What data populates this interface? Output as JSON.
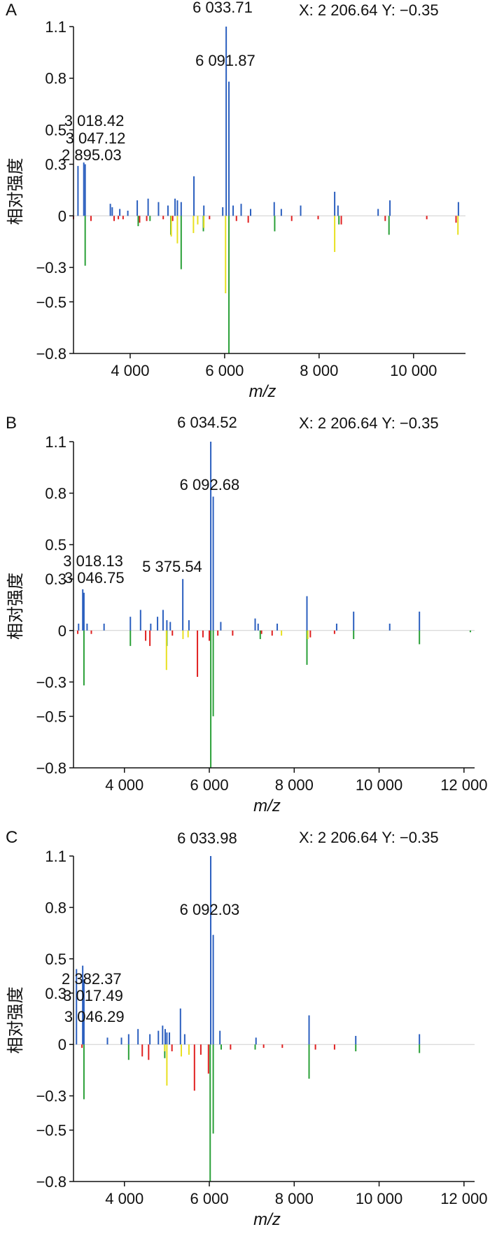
{
  "chart_data": [
    {
      "type": "bar",
      "panel": "A",
      "ylabel": "相对强度",
      "xlabel": "m/z",
      "coord_readout": "X: 2 206.64  Y: −0.35",
      "xlim": [
        2800,
        11100
      ],
      "ylim": [
        -0.8,
        1.1
      ],
      "xticks": [
        {
          "v": 4000,
          "t": "4 000"
        },
        {
          "v": 6000,
          "t": "6 000"
        },
        {
          "v": 8000,
          "t": "8 000"
        },
        {
          "v": 10000,
          "t": "10 000"
        }
      ],
      "yticks": [
        {
          "v": 1.1,
          "t": "1.1"
        },
        {
          "v": 0.8,
          "t": "0.8"
        },
        {
          "v": 0.5,
          "t": "0.5"
        },
        {
          "v": 0.3,
          "t": "0.3"
        },
        {
          "v": 0,
          "t": "0"
        },
        {
          "v": -0.3,
          "t": "−0.3"
        },
        {
          "v": -0.5,
          "t": "−0.5"
        },
        {
          "v": -0.8,
          "t": "−0.8"
        }
      ],
      "peak_labels": [
        {
          "text": "6 033.71",
          "x": 6033.71,
          "y": 1.1
        },
        {
          "text": "6 091.87",
          "x": 6091.87,
          "y": 0.78
        },
        {
          "text": "3 018.42",
          "x": 3018.42,
          "y": 0.42
        },
        {
          "text": "3 047.12",
          "x": 3047.12,
          "y": 0.38
        },
        {
          "text": "2 895.03",
          "x": 2895.03,
          "y": 0.3
        }
      ],
      "series": [
        {
          "color": "#2b5fbf",
          "sticks": [
            [
              2895,
              0.29
            ],
            [
              3018,
              0.31
            ],
            [
              3047,
              0.3
            ],
            [
              3580,
              0.07
            ],
            [
              3620,
              0.05
            ],
            [
              3780,
              0.04
            ],
            [
              3950,
              0.03
            ],
            [
              4150,
              0.09
            ],
            [
              4380,
              0.1
            ],
            [
              4600,
              0.08
            ],
            [
              4800,
              0.06
            ],
            [
              4950,
              0.1
            ],
            [
              5000,
              0.09
            ],
            [
              5080,
              0.08
            ],
            [
              5350,
              0.23
            ],
            [
              5560,
              0.06
            ],
            [
              5960,
              0.05
            ],
            [
              6033,
              1.1
            ],
            [
              6091,
              0.78
            ],
            [
              6180,
              0.06
            ],
            [
              6350,
              0.07
            ],
            [
              6550,
              0.04
            ],
            [
              7050,
              0.08
            ],
            [
              7200,
              0.04
            ],
            [
              7610,
              0.06
            ],
            [
              8330,
              0.14
            ],
            [
              8400,
              0.06
            ],
            [
              9250,
              0.04
            ],
            [
              9500,
              0.09
            ],
            [
              10950,
              0.08
            ]
          ]
        },
        {
          "color": "#2aa038",
          "sticks": [
            [
              3047,
              -0.29
            ],
            [
              4170,
              -0.06
            ],
            [
              4420,
              -0.03
            ],
            [
              4860,
              -0.11
            ],
            [
              5080,
              -0.31
            ],
            [
              5550,
              -0.09
            ],
            [
              6091,
              -0.8
            ],
            [
              7060,
              -0.09
            ],
            [
              8420,
              -0.05
            ],
            [
              9480,
              -0.11
            ]
          ]
        },
        {
          "color": "#e8e020",
          "sticks": [
            [
              4870,
              -0.12
            ],
            [
              5000,
              -0.16
            ],
            [
              5340,
              -0.1
            ],
            [
              5430,
              -0.05
            ],
            [
              5560,
              -0.07
            ],
            [
              6020,
              -0.45
            ],
            [
              8330,
              -0.21
            ],
            [
              10940,
              -0.11
            ]
          ]
        },
        {
          "color": "#e02020",
          "sticks": [
            [
              2800,
              -0.02
            ],
            [
              3170,
              -0.03
            ],
            [
              3660,
              -0.03
            ],
            [
              3750,
              -0.02
            ],
            [
              3850,
              -0.02
            ],
            [
              4200,
              -0.04
            ],
            [
              4350,
              -0.03
            ],
            [
              4700,
              -0.02
            ],
            [
              4900,
              -0.03
            ],
            [
              5680,
              -0.02
            ],
            [
              6250,
              -0.03
            ],
            [
              6500,
              -0.04
            ],
            [
              7420,
              -0.03
            ],
            [
              7980,
              -0.02
            ],
            [
              8470,
              -0.05
            ],
            [
              9400,
              -0.03
            ],
            [
              10280,
              -0.02
            ],
            [
              10900,
              -0.04
            ]
          ]
        }
      ]
    },
    {
      "type": "bar",
      "panel": "B",
      "ylabel": "相对强度",
      "xlabel": "m/z",
      "coord_readout": "X: 2 206.64  Y: −0.35",
      "xlim": [
        2800,
        12250
      ],
      "ylim": [
        -0.8,
        1.1
      ],
      "xticks": [
        {
          "v": 4000,
          "t": "4 000"
        },
        {
          "v": 6000,
          "t": "6 000"
        },
        {
          "v": 8000,
          "t": "8 000"
        },
        {
          "v": 10000,
          "t": "10 000"
        },
        {
          "v": 12000,
          "t": "12 000"
        }
      ],
      "yticks": [
        {
          "v": 1.1,
          "t": "1.1"
        },
        {
          "v": 0.8,
          "t": "0.8"
        },
        {
          "v": 0.5,
          "t": "0.5"
        },
        {
          "v": 0.3,
          "t": "0.3"
        },
        {
          "v": 0,
          "t": "0"
        },
        {
          "v": -0.3,
          "t": "−0.3"
        },
        {
          "v": -0.5,
          "t": "−0.5"
        },
        {
          "v": -0.8,
          "t": "−0.8"
        }
      ],
      "peak_labels": [
        {
          "text": "6 034.52",
          "x": 6034.52,
          "y": 1.1
        },
        {
          "text": "6 092.68",
          "x": 6092.68,
          "y": 0.78
        },
        {
          "text": "3 018.13",
          "x": 3018.13,
          "y": 0.38
        },
        {
          "text": "3 046.75",
          "x": 3046.75,
          "y": 0.34
        },
        {
          "text": "5 375.54",
          "x": 5375.54,
          "y": 0.36
        }
      ],
      "series": [
        {
          "color": "#2b5fbf",
          "sticks": [
            [
              2920,
              0.04
            ],
            [
              3018,
              0.24
            ],
            [
              3046,
              0.22
            ],
            [
              3120,
              0.04
            ],
            [
              3520,
              0.04
            ],
            [
              4140,
              0.08
            ],
            [
              4380,
              0.12
            ],
            [
              4620,
              0.04
            ],
            [
              4780,
              0.08
            ],
            [
              4910,
              0.12
            ],
            [
              5000,
              0.06
            ],
            [
              5080,
              0.05
            ],
            [
              5375,
              0.3
            ],
            [
              5520,
              0.06
            ],
            [
              6034,
              1.1
            ],
            [
              6092,
              0.78
            ],
            [
              6270,
              0.05
            ],
            [
              7080,
              0.07
            ],
            [
              7150,
              0.04
            ],
            [
              7600,
              0.04
            ],
            [
              8300,
              0.2
            ],
            [
              9000,
              0.04
            ],
            [
              9400,
              0.11
            ],
            [
              10250,
              0.04
            ],
            [
              10950,
              0.11
            ]
          ]
        },
        {
          "color": "#2aa038",
          "sticks": [
            [
              3046,
              -0.32
            ],
            [
              4140,
              -0.09
            ],
            [
              5000,
              -0.09
            ],
            [
              6034,
              -0.8
            ],
            [
              6092,
              -0.5
            ],
            [
              7200,
              -0.05
            ],
            [
              8300,
              -0.2
            ],
            [
              9400,
              -0.05
            ],
            [
              10950,
              -0.08
            ],
            [
              12150,
              -0.01
            ]
          ]
        },
        {
          "color": "#e8e020",
          "sticks": [
            [
              4990,
              -0.23
            ],
            [
              5380,
              -0.05
            ],
            [
              5500,
              -0.04
            ],
            [
              7700,
              -0.03
            ],
            [
              8320,
              -0.05
            ]
          ]
        },
        {
          "color": "#e02020",
          "sticks": [
            [
              2900,
              -0.02
            ],
            [
              3220,
              -0.02
            ],
            [
              4500,
              -0.06
            ],
            [
              4600,
              -0.09
            ],
            [
              5130,
              -0.03
            ],
            [
              5720,
              -0.27
            ],
            [
              5850,
              -0.04
            ],
            [
              6000,
              -0.06
            ],
            [
              6200,
              -0.03
            ],
            [
              6550,
              -0.03
            ],
            [
              7230,
              -0.02
            ],
            [
              7480,
              -0.03
            ],
            [
              8380,
              -0.04
            ],
            [
              8950,
              -0.02
            ]
          ]
        }
      ]
    },
    {
      "type": "bar",
      "panel": "C",
      "ylabel": "相对强度",
      "xlabel": "m/z",
      "coord_readout": "X: 2 206.64  Y: −0.35",
      "xlim": [
        2800,
        12250
      ],
      "ylim": [
        -0.8,
        1.1
      ],
      "xticks": [
        {
          "v": 4000,
          "t": "4 000"
        },
        {
          "v": 6000,
          "t": "6 000"
        },
        {
          "v": 8000,
          "t": "8 000"
        },
        {
          "v": 10000,
          "t": "10 000"
        },
        {
          "v": 12000,
          "t": "12 000"
        }
      ],
      "yticks": [
        {
          "v": 1.1,
          "t": "1.1"
        },
        {
          "v": 0.8,
          "t": "0.8"
        },
        {
          "v": 0.5,
          "t": "0.5"
        },
        {
          "v": 0.3,
          "t": "0.3"
        },
        {
          "v": 0,
          "t": "0"
        },
        {
          "v": -0.3,
          "t": "−0.3"
        },
        {
          "v": -0.5,
          "t": "−0.5"
        },
        {
          "v": -0.8,
          "t": "−0.8"
        }
      ],
      "peak_labels": [
        {
          "text": "6 033.98",
          "x": 6033.98,
          "y": 1.1
        },
        {
          "text": "6 092.03",
          "x": 6092.03,
          "y": 0.78
        },
        {
          "text": "2 382.37",
          "x": 2382.37,
          "y": 0.5
        },
        {
          "text": "3 017.49",
          "x": 3017.49,
          "y": 0.46
        },
        {
          "text": "3 046.29",
          "x": 3046.29,
          "y": 0.38
        }
      ],
      "series": [
        {
          "color": "#2b5fbf",
          "sticks": [
            [
              2760,
              0.05
            ],
            [
              2870,
              0.44
            ],
            [
              3017,
              0.46
            ],
            [
              3046,
              0.38
            ],
            [
              3600,
              0.04
            ],
            [
              3930,
              0.04
            ],
            [
              4100,
              0.06
            ],
            [
              4320,
              0.09
            ],
            [
              4600,
              0.06
            ],
            [
              4800,
              0.08
            ],
            [
              4900,
              0.11
            ],
            [
              4960,
              0.09
            ],
            [
              5000,
              0.07
            ],
            [
              5060,
              0.07
            ],
            [
              5320,
              0.21
            ],
            [
              5420,
              0.06
            ],
            [
              6033,
              1.1
            ],
            [
              6092,
              0.64
            ],
            [
              6250,
              0.08
            ],
            [
              7100,
              0.04
            ],
            [
              8350,
              0.17
            ],
            [
              9450,
              0.05
            ],
            [
              10950,
              0.06
            ]
          ]
        },
        {
          "color": "#2aa038",
          "sticks": [
            [
              3046,
              -0.32
            ],
            [
              4100,
              -0.09
            ],
            [
              4950,
              -0.08
            ],
            [
              6020,
              -0.8
            ],
            [
              6092,
              -0.52
            ],
            [
              6280,
              -0.03
            ],
            [
              7080,
              -0.03
            ],
            [
              8350,
              -0.2
            ],
            [
              9450,
              -0.04
            ],
            [
              10950,
              -0.05
            ]
          ]
        },
        {
          "color": "#e8e020",
          "sticks": [
            [
              4950,
              -0.04
            ],
            [
              5000,
              -0.24
            ],
            [
              5340,
              -0.07
            ],
            [
              5520,
              -0.06
            ]
          ]
        },
        {
          "color": "#e02020",
          "sticks": [
            [
              3000,
              -0.02
            ],
            [
              4420,
              -0.07
            ],
            [
              4570,
              -0.09
            ],
            [
              5120,
              -0.04
            ],
            [
              5650,
              -0.27
            ],
            [
              5800,
              -0.06
            ],
            [
              5980,
              -0.17
            ],
            [
              6500,
              -0.03
            ],
            [
              7280,
              -0.02
            ],
            [
              7720,
              -0.02
            ],
            [
              8500,
              -0.03
            ],
            [
              8950,
              -0.03
            ]
          ]
        }
      ]
    }
  ]
}
